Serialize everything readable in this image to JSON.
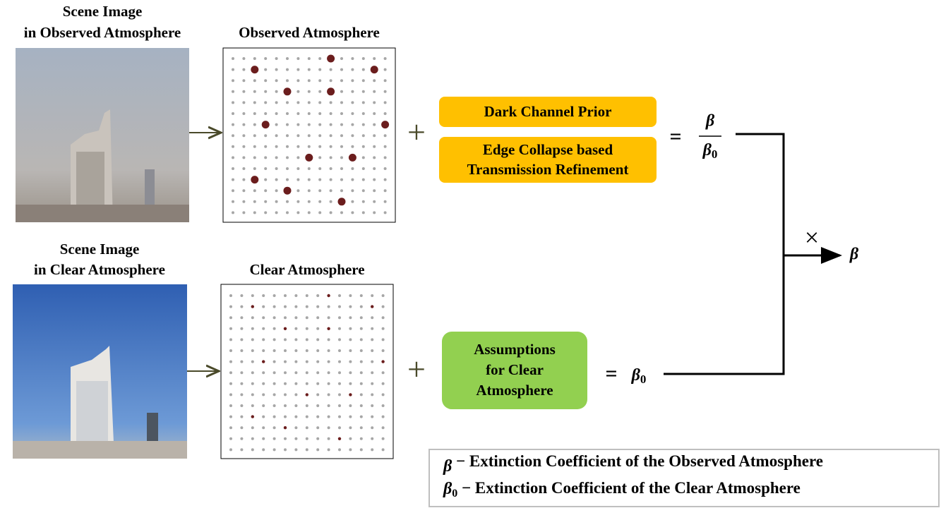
{
  "top": {
    "photo_label": [
      "Scene Image",
      "in Observed Atmosphere"
    ],
    "grid_title": "Observed Atmosphere",
    "plus": "+",
    "boxes": [
      [
        "Dark Channel Prior"
      ],
      [
        "Edge Collapse based",
        "Transmission Refinement"
      ]
    ],
    "equals": "=",
    "numerator": "β",
    "denominator": {
      "symbol": "β",
      "subscript": "0"
    }
  },
  "bottom": {
    "photo_label": [
      "Scene Image",
      "in Clear Atmosphere"
    ],
    "grid_title": "Clear Atmosphere",
    "plus": "+",
    "box": [
      "Assumptions",
      "for Clear",
      "Atmosphere"
    ],
    "equals": "=",
    "result": {
      "symbol": "β",
      "subscript": "0"
    }
  },
  "combine": {
    "operator": "×",
    "output": "β"
  },
  "legend": [
    {
      "symbol": "β",
      "subscript": "",
      "text": " − Extinction Coefficient of the Observed Atmosphere"
    },
    {
      "symbol": "β",
      "subscript": "0",
      "text": " − Extinction Coefficient of the Clear Atmosphere"
    }
  ]
}
